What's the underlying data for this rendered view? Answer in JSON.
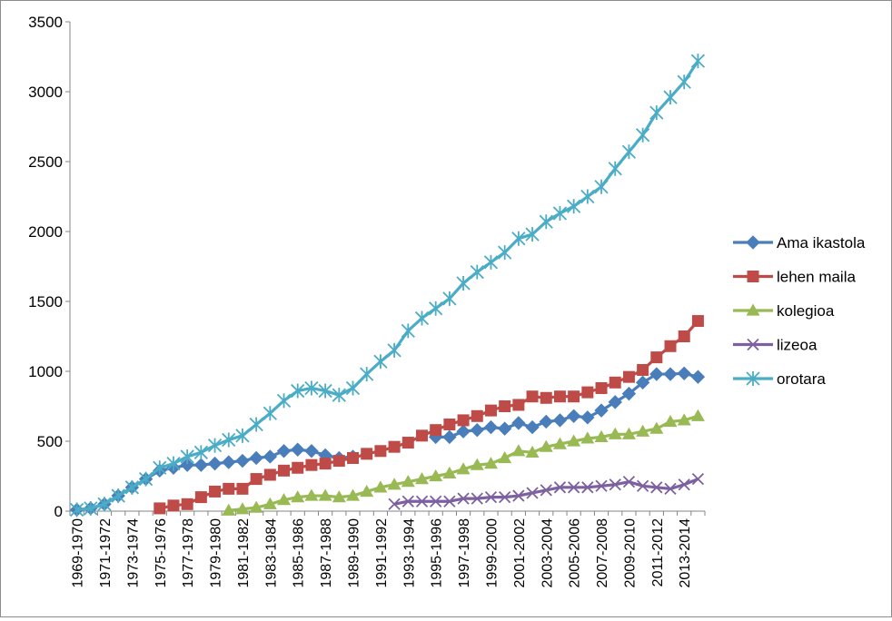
{
  "chart_data": {
    "type": "line",
    "title": "",
    "xlabel": "",
    "ylabel": "",
    "ylim": [
      0,
      3500
    ],
    "yticks": [
      0,
      500,
      1000,
      1500,
      2000,
      2500,
      3000,
      3500
    ],
    "grid": false,
    "legend_position": "right",
    "categories": [
      "1969-1970",
      "1970-1971",
      "1971-1972",
      "1972-1973",
      "1973-1974",
      "1974-1975",
      "1975-1976",
      "1976-1977",
      "1977-1978",
      "1978-1979",
      "1979-1980",
      "1980-1981",
      "1981-1982",
      "1982-1983",
      "1983-1984",
      "1984-1985",
      "1985-1986",
      "1986-1987",
      "1987-1988",
      "1988-1989",
      "1989-1990",
      "1990-1991",
      "1991-1992",
      "1992-1993",
      "1993-1994",
      "1994-1995",
      "1995-1996",
      "1996-1997",
      "1997-1998",
      "1998-1999",
      "1999-2000",
      "2000-2001",
      "2001-2002",
      "2002-2003",
      "2003-2004",
      "2004-2005",
      "2005-2006",
      "2006-2007",
      "2007-2008",
      "2008-2009",
      "2009-2010",
      "2010-2011",
      "2011-2012",
      "2012-2013",
      "2013-2014",
      "2014-2015"
    ],
    "tick_labels": [
      "1969-1970",
      "1971-1972",
      "1973-1974",
      "1975-1976",
      "1977-1978",
      "1979-1980",
      "1981-1982",
      "1983-1984",
      "1985-1986",
      "1987-1988",
      "1989-1990",
      "1991-1992",
      "1993-1994",
      "1995-1996",
      "1997-1998",
      "1999-2000",
      "2001-2002",
      "2003-2004",
      "2005-2006",
      "2007-2008",
      "2009-2010",
      "2011-2012",
      "2013-2014"
    ],
    "series": [
      {
        "name": "Ama ikastola",
        "color": "#4a7ebb",
        "marker": "diamond",
        "values": [
          10,
          20,
          50,
          110,
          170,
          230,
          290,
          310,
          330,
          330,
          340,
          350,
          360,
          380,
          390,
          430,
          440,
          430,
          400,
          380,
          390,
          null,
          null,
          null,
          null,
          null,
          530,
          530,
          570,
          580,
          600,
          590,
          630,
          600,
          640,
          650,
          680,
          670,
          720,
          780,
          840,
          920,
          980,
          980,
          985,
          960
        ]
      },
      {
        "name": "lehen maila",
        "color": "#be4b48",
        "marker": "square",
        "values": [
          null,
          null,
          null,
          null,
          null,
          null,
          20,
          40,
          50,
          100,
          140,
          160,
          160,
          230,
          260,
          290,
          310,
          330,
          340,
          360,
          380,
          410,
          430,
          460,
          490,
          540,
          580,
          620,
          650,
          680,
          720,
          750,
          760,
          820,
          810,
          820,
          820,
          850,
          880,
          920,
          960,
          1010,
          1100,
          1180,
          1250,
          1360
        ]
      },
      {
        "name": "kolegioa",
        "color": "#98b954",
        "marker": "triangle",
        "values": [
          null,
          null,
          null,
          null,
          null,
          null,
          null,
          null,
          null,
          null,
          null,
          5,
          15,
          25,
          50,
          80,
          100,
          110,
          110,
          100,
          110,
          140,
          170,
          190,
          210,
          230,
          250,
          270,
          300,
          330,
          340,
          380,
          430,
          420,
          460,
          480,
          500,
          520,
          530,
          550,
          550,
          570,
          590,
          640,
          650,
          680
        ]
      },
      {
        "name": "lizeoa",
        "color": "#7d60a0",
        "marker": "x",
        "values": [
          null,
          null,
          null,
          null,
          null,
          null,
          null,
          null,
          null,
          null,
          null,
          null,
          null,
          null,
          null,
          null,
          null,
          null,
          null,
          null,
          null,
          null,
          null,
          50,
          70,
          70,
          70,
          70,
          90,
          90,
          100,
          100,
          110,
          130,
          150,
          170,
          170,
          170,
          180,
          190,
          210,
          180,
          170,
          160,
          190,
          230
        ]
      },
      {
        "name": "orotara",
        "color": "#4bacc6",
        "marker": "star",
        "values": [
          10,
          20,
          50,
          110,
          170,
          230,
          310,
          340,
          390,
          420,
          470,
          510,
          540,
          620,
          700,
          790,
          860,
          880,
          860,
          830,
          880,
          980,
          1070,
          1150,
          1290,
          1380,
          1450,
          1520,
          1630,
          1710,
          1780,
          1850,
          1950,
          1980,
          2070,
          2130,
          2180,
          2250,
          2320,
          2450,
          2570,
          2690,
          2850,
          2960,
          3070,
          3220
        ]
      }
    ]
  }
}
